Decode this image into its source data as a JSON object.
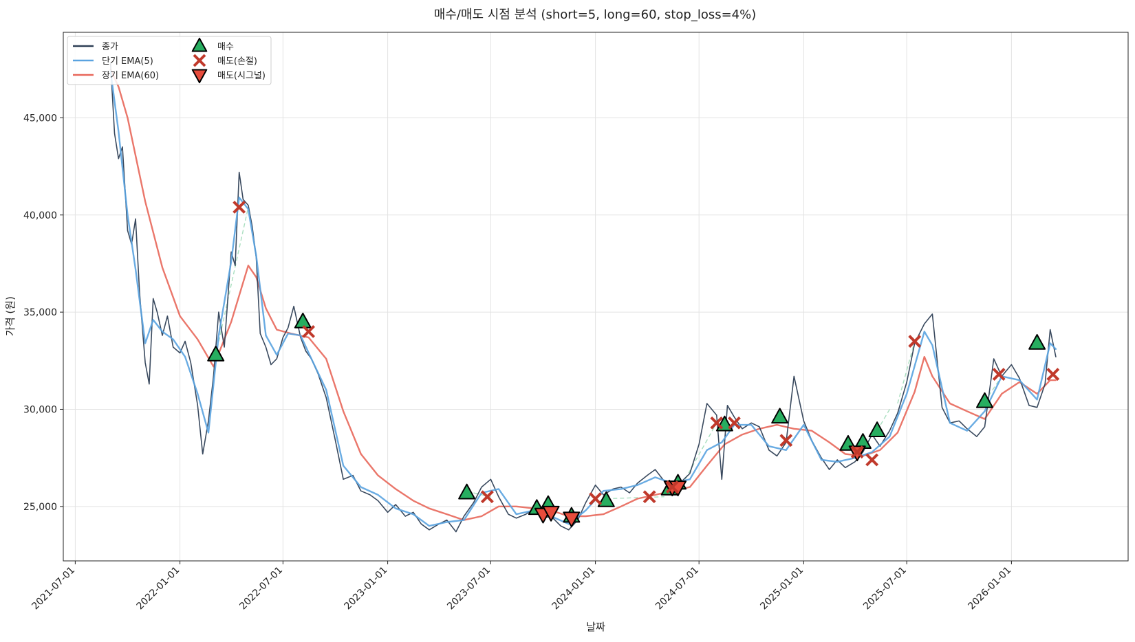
{
  "colors": {
    "close": "#2e3f55",
    "short_ema": "#5aa3e0",
    "long_ema": "#e8675a",
    "buy": "#27ae60",
    "sell_stop": "#c0392b",
    "sell_signal": "#e74c3c",
    "trade_link": "#a9dfbf",
    "grid": "#e3e3e3",
    "axis": "#222222"
  },
  "chart_data": {
    "type": "line",
    "title": "매수/매도 시점 분석 (short=5, long=60, stop_loss=4%)",
    "xlabel": "날짜",
    "ylabel": "가격 (원)",
    "xlim": [
      "2021-06-10",
      "2026-07-25"
    ],
    "ylim": [
      22200,
      49400
    ],
    "grid": true,
    "legend_position": "top-left",
    "x_tick_labels": [
      "2021-07-01",
      "2022-01-01",
      "2022-07-01",
      "2023-01-01",
      "2023-07-01",
      "2024-01-01",
      "2024-07-01",
      "2025-01-01",
      "2025-07-01",
      "2026-01-01"
    ],
    "y_ticks": [
      25000,
      30000,
      35000,
      40000,
      45000
    ],
    "y_tick_labels": [
      "25,000",
      "30,000",
      "35,000",
      "40,000",
      "45,000"
    ],
    "legend": [
      {
        "label": "종가",
        "kind": "line",
        "color_key": "close"
      },
      {
        "label": "단기 EMA(5)",
        "kind": "line",
        "color_key": "short_ema"
      },
      {
        "label": "장기 EMA(60)",
        "kind": "line",
        "color_key": "long_ema"
      },
      {
        "label": "매수",
        "kind": "buy"
      },
      {
        "label": "매도(손절)",
        "kind": "stop"
      },
      {
        "label": "매도(시그널)",
        "kind": "signal"
      }
    ],
    "series": [
      {
        "name": "종가",
        "color_key": "close",
        "x": [
          "2021-09-01",
          "2021-09-08",
          "2021-09-15",
          "2021-09-22",
          "2021-10-01",
          "2021-10-08",
          "2021-10-15",
          "2021-10-22",
          "2021-11-01",
          "2021-11-08",
          "2021-11-15",
          "2021-11-22",
          "2021-12-01",
          "2021-12-10",
          "2021-12-20",
          "2022-01-01",
          "2022-01-10",
          "2022-01-20",
          "2022-02-01",
          "2022-02-10",
          "2022-02-20",
          "2022-03-01",
          "2022-03-10",
          "2022-03-20",
          "2022-04-01",
          "2022-04-08",
          "2022-04-15",
          "2022-04-22",
          "2022-05-01",
          "2022-05-08",
          "2022-05-15",
          "2022-05-22",
          "2022-06-01",
          "2022-06-10",
          "2022-06-20",
          "2022-07-01",
          "2022-07-10",
          "2022-07-20",
          "2022-08-01",
          "2022-08-10",
          "2022-08-20",
          "2022-09-01",
          "2022-09-15",
          "2022-10-01",
          "2022-10-15",
          "2022-11-01",
          "2022-11-15",
          "2022-12-01",
          "2022-12-15",
          "2023-01-01",
          "2023-01-15",
          "2023-02-01",
          "2023-02-15",
          "2023-03-01",
          "2023-03-15",
          "2023-04-01",
          "2023-04-15",
          "2023-05-01",
          "2023-05-15",
          "2023-06-01",
          "2023-06-15",
          "2023-07-01",
          "2023-07-15",
          "2023-08-01",
          "2023-08-15",
          "2023-09-01",
          "2023-09-15",
          "2023-10-01",
          "2023-10-15",
          "2023-11-01",
          "2023-11-15",
          "2023-12-01",
          "2023-12-15",
          "2024-01-01",
          "2024-01-15",
          "2024-02-01",
          "2024-02-15",
          "2024-03-01",
          "2024-03-15",
          "2024-04-01",
          "2024-04-15",
          "2024-05-01",
          "2024-05-15",
          "2024-06-01",
          "2024-06-15",
          "2024-07-01",
          "2024-07-15",
          "2024-08-01",
          "2024-08-10",
          "2024-08-20",
          "2024-09-01",
          "2024-09-15",
          "2024-10-01",
          "2024-10-15",
          "2024-11-01",
          "2024-11-15",
          "2024-12-01",
          "2024-12-15",
          "2025-01-01",
          "2025-01-15",
          "2025-02-01",
          "2025-02-15",
          "2025-03-01",
          "2025-03-15",
          "2025-04-01",
          "2025-04-15",
          "2025-05-01",
          "2025-05-15",
          "2025-06-01",
          "2025-06-15",
          "2025-07-01",
          "2025-07-15",
          "2025-08-01",
          "2025-08-15",
          "2025-09-01",
          "2025-09-15",
          "2025-10-01",
          "2025-10-15",
          "2025-11-01",
          "2025-11-15",
          "2025-12-01",
          "2025-12-15",
          "2026-01-01",
          "2026-01-15",
          "2026-02-01",
          "2026-02-15",
          "2026-03-01",
          "2026-03-10",
          "2026-03-20"
        ],
        "values": [
          47800,
          44200,
          42900,
          43500,
          39200,
          38500,
          39800,
          36000,
          32400,
          31300,
          35700,
          35000,
          33800,
          34800,
          33200,
          32900,
          33500,
          32400,
          30200,
          27700,
          29400,
          31700,
          35000,
          33200,
          38100,
          37400,
          42200,
          40800,
          40500,
          39400,
          37800,
          33900,
          33200,
          32300,
          32600,
          33700,
          34200,
          35300,
          33700,
          33000,
          32600,
          31800,
          30600,
          28400,
          26400,
          26600,
          25800,
          25600,
          25300,
          24700,
          25100,
          24500,
          24700,
          24100,
          23800,
          24100,
          24300,
          23700,
          24500,
          25200,
          26000,
          26400,
          25500,
          24600,
          24400,
          24600,
          24900,
          24400,
          24500,
          24000,
          23800,
          24300,
          25200,
          26100,
          25600,
          25900,
          26000,
          25700,
          26200,
          26600,
          26900,
          26300,
          25800,
          26300,
          26700,
          28200,
          30300,
          29700,
          26400,
          30200,
          29600,
          29000,
          29300,
          29100,
          27900,
          27600,
          28300,
          31700,
          29400,
          28400,
          27500,
          26900,
          27400,
          27000,
          27300,
          27800,
          28700,
          28100,
          28900,
          29800,
          31400,
          33400,
          34400,
          34900,
          30100,
          29300,
          29400,
          29000,
          28600,
          29100,
          32600,
          31700,
          32300,
          31600,
          30200,
          30100,
          31300,
          34100,
          32700
        ]
      },
      {
        "name": "단기 EMA(5)",
        "color_key": "short_ema",
        "x": [
          "2021-09-01",
          "2021-09-15",
          "2021-10-01",
          "2021-10-15",
          "2021-11-01",
          "2021-11-15",
          "2021-12-01",
          "2021-12-20",
          "2022-01-10",
          "2022-02-01",
          "2022-02-20",
          "2022-03-10",
          "2022-04-01",
          "2022-04-15",
          "2022-05-01",
          "2022-05-15",
          "2022-06-01",
          "2022-06-20",
          "2022-07-10",
          "2022-08-01",
          "2022-08-20",
          "2022-09-15",
          "2022-10-15",
          "2022-11-15",
          "2022-12-15",
          "2023-01-15",
          "2023-02-15",
          "2023-03-15",
          "2023-04-15",
          "2023-05-15",
          "2023-06-15",
          "2023-07-15",
          "2023-08-15",
          "2023-09-15",
          "2023-10-15",
          "2023-11-15",
          "2023-12-15",
          "2024-01-15",
          "2024-02-15",
          "2024-03-15",
          "2024-04-15",
          "2024-05-15",
          "2024-06-15",
          "2024-07-15",
          "2024-08-10",
          "2024-09-01",
          "2024-10-01",
          "2024-11-01",
          "2024-12-01",
          "2025-01-01",
          "2025-02-01",
          "2025-03-01",
          "2025-04-01",
          "2025-05-01",
          "2025-06-01",
          "2025-07-01",
          "2025-08-01",
          "2025-08-15",
          "2025-09-15",
          "2025-10-15",
          "2025-11-15",
          "2025-12-15",
          "2026-01-15",
          "2026-02-15",
          "2026-03-10",
          "2026-03-20"
        ],
        "values": [
          47400,
          44300,
          40000,
          37200,
          33400,
          34600,
          34000,
          33600,
          32700,
          30800,
          28800,
          33800,
          37600,
          40900,
          40300,
          37900,
          33800,
          32800,
          33900,
          33800,
          32600,
          31000,
          27100,
          26000,
          25600,
          24900,
          24600,
          24000,
          24200,
          24300,
          25700,
          25900,
          24600,
          24800,
          24500,
          24100,
          24800,
          25800,
          25900,
          26100,
          26500,
          26200,
          26400,
          27900,
          28300,
          29200,
          29200,
          28100,
          27900,
          29200,
          27400,
          27300,
          27500,
          27800,
          28600,
          30800,
          34000,
          33300,
          29300,
          28900,
          29900,
          31700,
          31500,
          30500,
          33400,
          33100
        ]
      },
      {
        "name": "장기 EMA(60)",
        "color_key": "long_ema",
        "x": [
          "2021-09-01",
          "2021-09-15",
          "2021-10-01",
          "2021-11-01",
          "2021-12-01",
          "2022-01-01",
          "2022-02-01",
          "2022-03-01",
          "2022-04-01",
          "2022-05-01",
          "2022-05-15",
          "2022-06-01",
          "2022-06-20",
          "2022-07-15",
          "2022-08-15",
          "2022-09-15",
          "2022-10-15",
          "2022-11-15",
          "2022-12-15",
          "2023-01-15",
          "2023-02-15",
          "2023-03-15",
          "2023-04-15",
          "2023-05-15",
          "2023-06-15",
          "2023-07-15",
          "2023-08-15",
          "2023-09-15",
          "2023-10-15",
          "2023-11-15",
          "2023-12-15",
          "2024-01-15",
          "2024-02-15",
          "2024-03-15",
          "2024-04-15",
          "2024-05-15",
          "2024-06-15",
          "2024-07-15",
          "2024-08-15",
          "2024-09-15",
          "2024-10-15",
          "2024-11-15",
          "2024-12-15",
          "2025-01-15",
          "2025-02-15",
          "2025-03-15",
          "2025-04-15",
          "2025-05-15",
          "2025-06-15",
          "2025-07-15",
          "2025-08-01",
          "2025-08-15",
          "2025-09-15",
          "2025-10-15",
          "2025-11-15",
          "2025-12-15",
          "2026-01-15",
          "2026-02-15",
          "2026-03-10",
          "2026-03-20"
        ],
        "values": [
          47500,
          46600,
          45000,
          40700,
          37300,
          34800,
          33600,
          32200,
          34500,
          37400,
          36800,
          35200,
          34100,
          33900,
          33700,
          32600,
          29900,
          27700,
          26600,
          25900,
          25300,
          24900,
          24600,
          24300,
          24500,
          25000,
          25000,
          24900,
          24800,
          24500,
          24500,
          24600,
          25000,
          25400,
          25600,
          25800,
          26000,
          27100,
          28200,
          28700,
          29000,
          29200,
          29000,
          28900,
          28300,
          27700,
          27600,
          27900,
          28800,
          30900,
          32700,
          31700,
          30300,
          29900,
          29500,
          30800,
          31400,
          30800,
          31500,
          31500
        ]
      }
    ],
    "trade_links": [
      {
        "x": [
          "2022-03-05",
          "2022-05-01"
        ],
        "y": [
          32800,
          40400
        ]
      },
      {
        "x": [
          "2023-06-01",
          "2023-07-01"
        ],
        "y": [
          25700,
          25500
        ]
      },
      {
        "x": [
          "2023-09-20",
          "2023-10-01"
        ],
        "y": [
          24900,
          24700
        ]
      },
      {
        "x": [
          "2024-01-20",
          "2024-05-01"
        ],
        "y": [
          25400,
          25500
        ]
      },
      {
        "x": [
          "2024-06-01",
          "2024-08-01"
        ],
        "y": [
          26100,
          29300
        ]
      },
      {
        "x": [
          "2025-05-10",
          "2025-06-01"
        ],
        "y": [
          28900,
          30000
        ]
      },
      {
        "x": [
          "2025-06-15",
          "2025-07-15"
        ],
        "y": [
          30300,
          33500
        ]
      },
      {
        "x": [
          "2025-11-15",
          "2025-12-15"
        ],
        "y": [
          30400,
          31700
        ]
      }
    ],
    "buy_points": [
      {
        "date": "2022-03-05",
        "price": 32800
      },
      {
        "date": "2022-08-05",
        "price": 34500
      },
      {
        "date": "2023-05-20",
        "price": 25700
      },
      {
        "date": "2023-09-20",
        "price": 24900
      },
      {
        "date": "2023-10-10",
        "price": 25100
      },
      {
        "date": "2023-11-20",
        "price": 24500
      },
      {
        "date": "2024-01-20",
        "price": 25300
      },
      {
        "date": "2024-05-10",
        "price": 25900
      },
      {
        "date": "2024-05-25",
        "price": 26200
      },
      {
        "date": "2024-08-15",
        "price": 29200
      },
      {
        "date": "2024-11-20",
        "price": 29600
      },
      {
        "date": "2025-03-20",
        "price": 28200
      },
      {
        "date": "2025-04-15",
        "price": 28300
      },
      {
        "date": "2025-05-10",
        "price": 28900
      },
      {
        "date": "2025-11-15",
        "price": 30400
      },
      {
        "date": "2026-02-15",
        "price": 33400
      }
    ],
    "sell_stop_points": [
      {
        "date": "2022-04-15",
        "price": 40400
      },
      {
        "date": "2022-08-15",
        "price": 34000
      },
      {
        "date": "2023-06-25",
        "price": 25500
      },
      {
        "date": "2024-01-01",
        "price": 25400
      },
      {
        "date": "2024-04-05",
        "price": 25500
      },
      {
        "date": "2024-05-15",
        "price": 26000
      },
      {
        "date": "2024-08-01",
        "price": 29300
      },
      {
        "date": "2024-09-01",
        "price": 29300
      },
      {
        "date": "2024-12-01",
        "price": 28400
      },
      {
        "date": "2025-04-05",
        "price": 27800
      },
      {
        "date": "2025-05-01",
        "price": 27400
      },
      {
        "date": "2025-07-15",
        "price": 33500
      },
      {
        "date": "2025-12-10",
        "price": 31800
      },
      {
        "date": "2026-03-15",
        "price": 31800
      }
    ],
    "sell_signal_points": [
      {
        "date": "2023-10-01",
        "price": 24600
      },
      {
        "date": "2023-10-15",
        "price": 24700
      },
      {
        "date": "2023-11-20",
        "price": 24400
      },
      {
        "date": "2024-05-15",
        "price": 26000
      },
      {
        "date": "2024-05-25",
        "price": 26000
      },
      {
        "date": "2025-04-05",
        "price": 27800
      }
    ]
  }
}
